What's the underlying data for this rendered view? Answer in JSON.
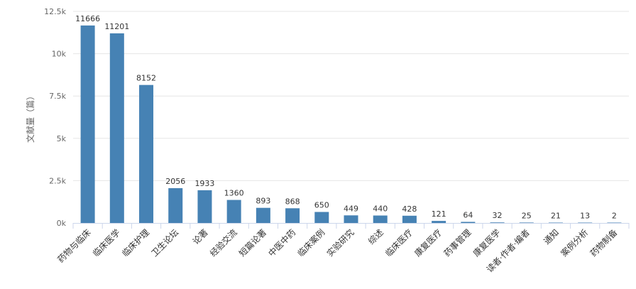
{
  "chart_data": {
    "type": "bar",
    "title": "",
    "xlabel": "",
    "ylabel": "文献量（篇）",
    "ylim": [
      0,
      12500
    ],
    "yticks": [
      0,
      2500,
      5000,
      7500,
      10000,
      12500
    ],
    "ytick_labels": [
      "0k",
      "2.5k",
      "5k",
      "7.5k",
      "10k",
      "12.5k"
    ],
    "grid": true,
    "bar_color": "#4682B4",
    "categories": [
      "药物与临床",
      "临床医学",
      "临床护理",
      "卫生论坛",
      "论著",
      "经验交流",
      "短篇论著",
      "中医中药",
      "临床案例",
      "实验研究",
      "综述",
      "临床医疗",
      "康复医疗",
      "药事管理",
      "康复医学",
      "读者·作者·编者",
      "通知",
      "案例分析",
      "药物制备"
    ],
    "values": [
      11666,
      11201,
      8152,
      2056,
      1933,
      1360,
      893,
      868,
      650,
      449,
      440,
      428,
      121,
      64,
      32,
      25,
      21,
      13,
      2
    ]
  }
}
